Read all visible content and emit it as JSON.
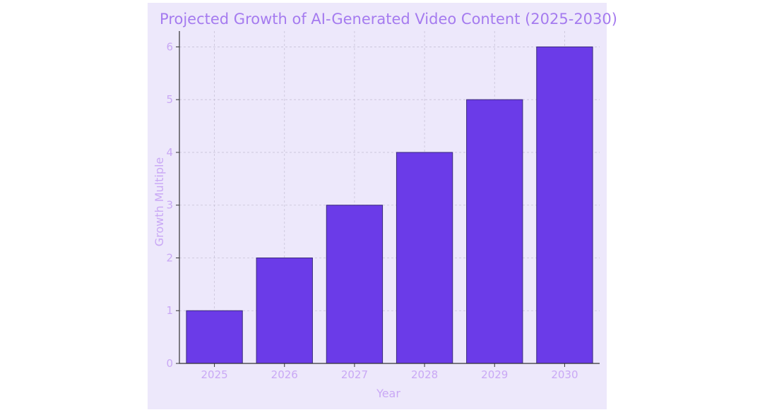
{
  "colors": {
    "page_background": "#ffffff",
    "figure_background": "#ede8fb",
    "bar_fill": "#6b3be8",
    "bar_edge": "#3a2a7a",
    "text": "#c9a8f5",
    "title": "#a57bef",
    "grid": "#c8c2d8",
    "axis": "#333333"
  },
  "chart_data": {
    "type": "bar",
    "title": "Projected Growth of AI-Generated Video Content (2025-2030)",
    "xlabel": "Year",
    "ylabel": "Growth Multiple",
    "categories": [
      "2025",
      "2026",
      "2027",
      "2028",
      "2029",
      "2030"
    ],
    "values": [
      1,
      2,
      3,
      4,
      5,
      6
    ],
    "ylim": [
      0,
      6.3
    ],
    "yticks": [
      "0",
      "1",
      "2",
      "3",
      "4",
      "5",
      "6"
    ],
    "grid": true,
    "grid_style": "dashed",
    "legend": "none"
  }
}
